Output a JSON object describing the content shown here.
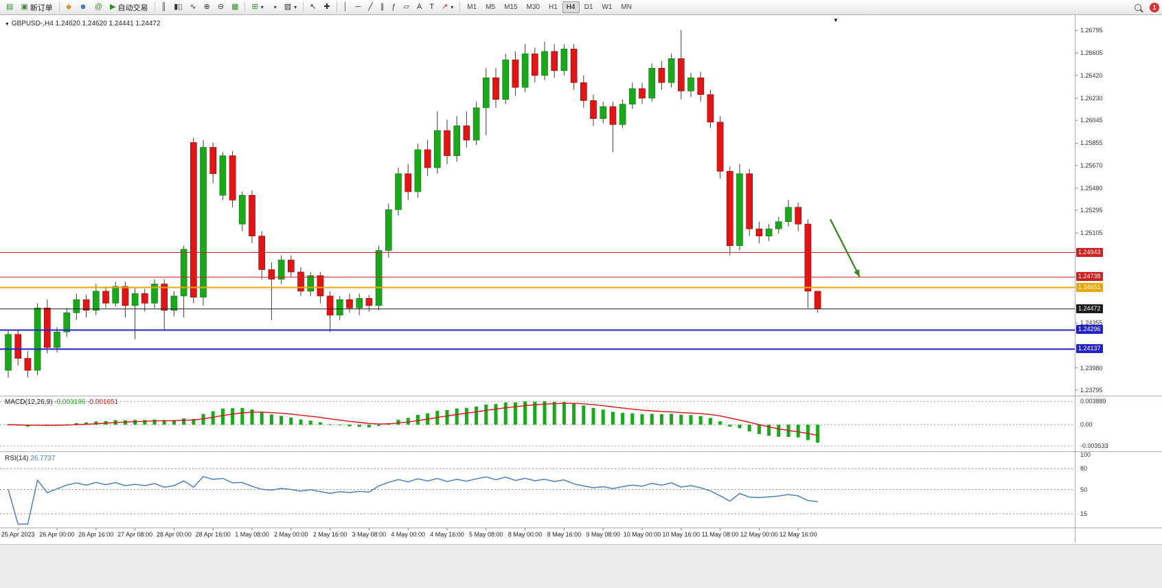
{
  "toolbar": {
    "new_order_label": "新订单",
    "auto_trading_label": "自动交易",
    "icons": {
      "app": "▤",
      "new_order": "▣",
      "market": "◆",
      "profile": "☻",
      "community": "@",
      "autotrade_play": "▶",
      "bars": "║",
      "candles": "▮▯",
      "line_chart": "∿",
      "zoom_in": "⊕",
      "zoom_out": "⊖",
      "tile": "▦",
      "indicators": "⊞",
      "periods": "◷",
      "templates": "▧",
      "cursor": "↖",
      "crosshair": "✚",
      "vline": "│",
      "hline": "─",
      "trendline": "╱",
      "channel": "∥",
      "fibonacci": "ƒ",
      "shapes": "▱",
      "text": "A",
      "label": "T",
      "arrows": "↗",
      "dropdown": "▾"
    },
    "timeframes": [
      "M1",
      "M5",
      "M15",
      "M30",
      "H1",
      "H4",
      "D1",
      "W1",
      "MN"
    ],
    "active_timeframe": "H4",
    "notification_count": "1"
  },
  "chart": {
    "marker": "▼",
    "title": "GBPUSD-,H4",
    "ohlc": "1.24620 1.24620 1.24441 1.24472",
    "end_marker": "▼"
  },
  "indicators": {
    "macd": {
      "name": "MACD(12,26,9)",
      "value_main": "-0.003196",
      "value_signal": "-0.001651",
      "axis": [
        "0.003889",
        "0.00",
        "-0.003533"
      ],
      "axis_values": [
        0.003889,
        0,
        -0.003533
      ]
    },
    "rsi": {
      "name": "RSI(14)",
      "value": "26.7737",
      "axis_values": [
        100,
        80,
        50,
        15
      ],
      "levels": [
        80,
        50,
        15
      ]
    }
  },
  "chart_data": {
    "type": "candlestick",
    "symbol": "GBPUSD-",
    "timeframe": "H4",
    "price_axis": {
      "top": 1.269,
      "bottom": 1.2376,
      "tick_labels": [
        "1.26795",
        "1.26605",
        "1.26420",
        "1.26230",
        "1.26045",
        "1.25855",
        "1.25670",
        "1.25480",
        "1.25295",
        "1.25105",
        "1.24355",
        "1.23980",
        "1.23795"
      ]
    },
    "time_labels": [
      "25 Apr 2023",
      "26 Apr 00:00",
      "26 Apr 16:00",
      "27 Apr 08:00",
      "28 Apr 00:00",
      "28 Apr 16:00",
      "1 May 08:00",
      "2 May 00:00",
      "2 May 16:00",
      "3 May 08:00",
      "4 May 00:00",
      "4 May 16:00",
      "5 May 08:00",
      "8 May 00:00",
      "8 May 16:00",
      "9 May 08:00",
      "10 May 00:00",
      "10 May 16:00",
      "11 May 08:00",
      "12 May 00:00",
      "12 May 16:00"
    ],
    "candles": [
      [
        1.2396,
        1.243,
        1.239,
        1.2426
      ],
      [
        1.2426,
        1.2429,
        1.24,
        1.2406
      ],
      [
        1.2406,
        1.2412,
        1.239,
        1.2396
      ],
      [
        1.2396,
        1.2452,
        1.2392,
        1.2448
      ],
      [
        1.2448,
        1.2455,
        1.241,
        1.2415
      ],
      [
        1.2415,
        1.2432,
        1.2411,
        1.2428
      ],
      [
        1.2428,
        1.2448,
        1.2424,
        1.2444
      ],
      [
        1.2444,
        1.246,
        1.2438,
        1.2455
      ],
      [
        1.2455,
        1.2459,
        1.244,
        1.2446
      ],
      [
        1.2446,
        1.2468,
        1.2442,
        1.2462
      ],
      [
        1.2462,
        1.2466,
        1.2448,
        1.2452
      ],
      [
        1.2452,
        1.247,
        1.2449,
        1.2466
      ],
      [
        1.2466,
        1.247,
        1.244,
        1.245
      ],
      [
        1.245,
        1.2465,
        1.2422,
        1.246
      ],
      [
        1.246,
        1.2464,
        1.2445,
        1.2452
      ],
      [
        1.2452,
        1.2472,
        1.2448,
        1.2468
      ],
      [
        1.2468,
        1.2472,
        1.243,
        1.2446
      ],
      [
        1.2446,
        1.2462,
        1.2441,
        1.2458
      ],
      [
        1.2458,
        1.25,
        1.244,
        1.2497
      ],
      [
        1.2586,
        1.259,
        1.2452,
        1.2457
      ],
      [
        1.2457,
        1.2588,
        1.245,
        1.2582
      ],
      [
        1.2582,
        1.2586,
        1.2552,
        1.256
      ],
      [
        1.2542,
        1.2578,
        1.2538,
        1.2575
      ],
      [
        1.2575,
        1.2579,
        1.2532,
        1.2538
      ],
      [
        1.2518,
        1.2545,
        1.2512,
        1.2542
      ],
      [
        1.2542,
        1.2546,
        1.2502,
        1.2508
      ],
      [
        1.2508,
        1.2512,
        1.2472,
        1.248
      ],
      [
        1.248,
        1.2486,
        1.2438,
        1.2472
      ],
      [
        1.2472,
        1.2492,
        1.2468,
        1.2488
      ],
      [
        1.2488,
        1.2492,
        1.2474,
        1.2478
      ],
      [
        1.2478,
        1.2482,
        1.2458,
        1.2462
      ],
      [
        1.2462,
        1.2478,
        1.2458,
        1.2475
      ],
      [
        1.2475,
        1.2478,
        1.2452,
        1.2458
      ],
      [
        1.2458,
        1.2462,
        1.2428,
        1.2442
      ],
      [
        1.2442,
        1.2458,
        1.2438,
        1.2455
      ],
      [
        1.2455,
        1.246,
        1.2444,
        1.2448
      ],
      [
        1.2448,
        1.246,
        1.2442,
        1.2456
      ],
      [
        1.2456,
        1.2459,
        1.2445,
        1.245
      ],
      [
        1.245,
        1.25,
        1.2446,
        1.2496
      ],
      [
        1.2496,
        1.2535,
        1.249,
        1.253
      ],
      [
        1.253,
        1.2565,
        1.2525,
        1.256
      ],
      [
        1.256,
        1.2568,
        1.2538,
        1.2545
      ],
      [
        1.2545,
        1.2585,
        1.254,
        1.258
      ],
      [
        1.258,
        1.2588,
        1.2558,
        1.2565
      ],
      [
        1.2565,
        1.2612,
        1.256,
        1.2596
      ],
      [
        1.2596,
        1.2605,
        1.2568,
        1.2575
      ],
      [
        1.2575,
        1.2608,
        1.257,
        1.26
      ],
      [
        1.26,
        1.2612,
        1.2582,
        1.2588
      ],
      [
        1.2588,
        1.262,
        1.2584,
        1.2615
      ],
      [
        1.2615,
        1.2648,
        1.2592,
        1.264
      ],
      [
        1.264,
        1.2648,
        1.2615,
        1.2622
      ],
      [
        1.2622,
        1.266,
        1.2618,
        1.2655
      ],
      [
        1.2655,
        1.2662,
        1.2625,
        1.2632
      ],
      [
        1.2632,
        1.2668,
        1.2628,
        1.266
      ],
      [
        1.266,
        1.2665,
        1.2636,
        1.2642
      ],
      [
        1.2642,
        1.267,
        1.2638,
        1.2662
      ],
      [
        1.2662,
        1.2668,
        1.264,
        1.2646
      ],
      [
        1.2646,
        1.2668,
        1.2642,
        1.2664
      ],
      [
        1.2664,
        1.2668,
        1.263,
        1.2636
      ],
      [
        1.2636,
        1.2642,
        1.2615,
        1.2621
      ],
      [
        1.2621,
        1.2626,
        1.26,
        1.2606
      ],
      [
        1.2606,
        1.262,
        1.2602,
        1.2616
      ],
      [
        1.2616,
        1.262,
        1.2578,
        1.2601
      ],
      [
        1.2601,
        1.2622,
        1.2598,
        1.2618
      ],
      [
        1.2618,
        1.2636,
        1.2614,
        1.2631
      ],
      [
        1.2631,
        1.2636,
        1.2618,
        1.2623
      ],
      [
        1.2623,
        1.2652,
        1.262,
        1.2648
      ],
      [
        1.2648,
        1.2654,
        1.263,
        1.2636
      ],
      [
        1.2636,
        1.266,
        1.2632,
        1.2656
      ],
      [
        1.2656,
        1.268,
        1.2622,
        1.2629
      ],
      [
        1.2629,
        1.2644,
        1.2624,
        1.264
      ],
      [
        1.264,
        1.2645,
        1.262,
        1.2626
      ],
      [
        1.2626,
        1.263,
        1.2598,
        1.2603
      ],
      [
        1.2603,
        1.2608,
        1.2556,
        1.2562
      ],
      [
        1.2562,
        1.2566,
        1.2492,
        1.25
      ],
      [
        1.25,
        1.2568,
        1.2496,
        1.256
      ],
      [
        1.256,
        1.2564,
        1.2508,
        1.2514
      ],
      [
        1.2514,
        1.252,
        1.2502,
        1.2508
      ],
      [
        1.2508,
        1.2518,
        1.2504,
        1.2514
      ],
      [
        1.2514,
        1.2524,
        1.251,
        1.252
      ],
      [
        1.252,
        1.2538,
        1.2516,
        1.2532
      ],
      [
        1.2532,
        1.2536,
        1.2512,
        1.2518
      ],
      [
        1.2518,
        1.2522,
        1.2448,
        1.2462
      ],
      [
        1.2462,
        1.2462,
        1.24441,
        1.24472
      ]
    ],
    "hlines": [
      {
        "price": 1.24943,
        "label": "1.24943",
        "color": "#d02020",
        "width": 1
      },
      {
        "price": 1.24738,
        "label": "1.24738",
        "color": "#d02020",
        "width": 1
      },
      {
        "price": 1.24651,
        "label": "1.24651",
        "color": "#efa500",
        "width": 2
      },
      {
        "price": 1.24472,
        "label": "1.24472",
        "color": "#1a1a1a",
        "width": 1
      },
      {
        "price": 1.24296,
        "label": "1.24296",
        "color": "#2222cc",
        "width": 2
      },
      {
        "price": 1.24137,
        "label": "1.24137",
        "color": "#2222cc",
        "width": 2
      }
    ],
    "arrow": {
      "from_index": 84.3,
      "from_price": 1.2522,
      "to_index": 87.3,
      "to_price": 1.2474,
      "color": "#3a8a28"
    },
    "colors": {
      "up": "#18aa18",
      "down": "#e41414",
      "wick": "#3a3a3a",
      "macd_hist": "#18aa18",
      "macd_signal": "#dd1111",
      "rsi": "#4a7fc1"
    },
    "macd_display": {
      "max_hist": 0.003889
    }
  }
}
